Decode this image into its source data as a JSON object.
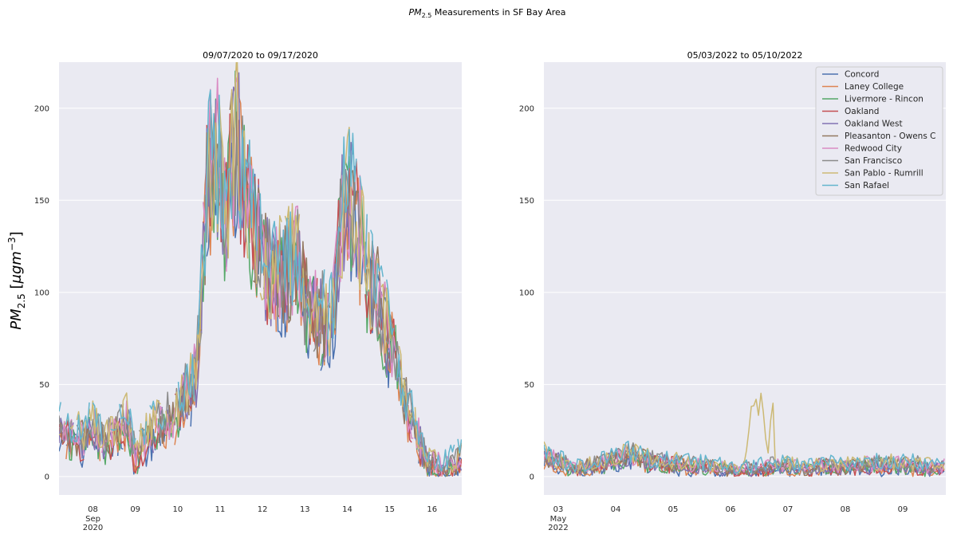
{
  "figure": {
    "suptitle_prefix": "PM",
    "suptitle_sub": "2.5",
    "suptitle_rest": " Measurements in SF Bay Area",
    "ylabel_main": "PM",
    "ylabel_sub": "2.5",
    "ylabel_unit_open": "  [",
    "ylabel_unit_mu": "μgm",
    "ylabel_unit_exp": "−3",
    "ylabel_unit_close": "]"
  },
  "colors": {
    "background": "#EAEAF2",
    "grid": "#FFFFFF",
    "series": [
      "#4C72B0",
      "#DD8452",
      "#55A868",
      "#C44E52",
      "#8172B3",
      "#937860",
      "#DA8BC3",
      "#8C8C8C",
      "#CCB974",
      "#64B5CD"
    ]
  },
  "chart_data": [
    {
      "type": "line",
      "title": "09/07/2020 to 09/17/2020",
      "xlabel": "",
      "ylabel": "PM2.5 [μgm−3]",
      "x_range": [
        7.2,
        16.7
      ],
      "ylim": [
        -10,
        225
      ],
      "yticks": [
        0,
        50,
        100,
        150,
        200
      ],
      "ytick_labels": [
        "0",
        "50",
        "100",
        "150",
        "200"
      ],
      "xticks": [
        8,
        9,
        10,
        11,
        12,
        13,
        14,
        15,
        16
      ],
      "xtick_labels": [
        "08",
        "09",
        "10",
        "11",
        "12",
        "13",
        "14",
        "15",
        "16"
      ],
      "xtick_sublabels": [
        "Sep",
        "2020"
      ],
      "grid": true,
      "legend": "none",
      "series_names": [
        "Concord",
        "Laney College",
        "Livermore - Rincon",
        "Oakland",
        "Oakland West",
        "Pleasanton - Owens C",
        "Redwood City",
        "San Francisco",
        "San Pablo - Rumrill",
        "San Rafael"
      ],
      "profile_x": [
        7.2,
        7.5,
        7.8,
        8.0,
        8.3,
        8.5,
        8.8,
        9.0,
        9.3,
        9.6,
        9.9,
        10.2,
        10.45,
        10.7,
        10.9,
        11.1,
        11.4,
        11.6,
        11.9,
        12.2,
        12.5,
        12.8,
        13.0,
        13.3,
        13.6,
        13.9,
        14.1,
        14.35,
        14.5,
        14.7,
        14.9,
        15.1,
        15.3,
        15.6,
        15.9,
        16.2,
        16.5,
        16.7
      ],
      "profile_y": [
        25,
        22,
        20,
        28,
        18,
        22,
        30,
        10,
        22,
        28,
        32,
        45,
        55,
        160,
        180,
        140,
        185,
        150,
        130,
        105,
        110,
        120,
        95,
        88,
        80,
        145,
        150,
        125,
        105,
        100,
        80,
        70,
        45,
        25,
        8,
        4,
        5,
        10
      ]
    },
    {
      "type": "line",
      "title": "05/03/2022 to 05/10/2022",
      "xlabel": "",
      "ylabel": "",
      "x_range": [
        2.75,
        9.75
      ],
      "ylim": [
        -10,
        225
      ],
      "yticks": [
        0,
        50,
        100,
        150,
        200
      ],
      "ytick_labels": [
        "0",
        "50",
        "100",
        "150",
        "200"
      ],
      "xticks": [
        3,
        4,
        5,
        6,
        7,
        8,
        9
      ],
      "xtick_labels": [
        "03",
        "04",
        "05",
        "06",
        "07",
        "08",
        "09"
      ],
      "xtick_sublabels": [
        "May",
        "2022"
      ],
      "grid": true,
      "legend": "upper right",
      "series_names": [
        "Concord",
        "Laney College",
        "Livermore - Rincon",
        "Oakland",
        "Oakland West",
        "Pleasanton - Owens C",
        "Redwood City",
        "San Francisco",
        "San Pablo - Rumrill",
        "San Rafael"
      ],
      "profile_x": [
        2.75,
        3.0,
        3.3,
        3.6,
        4.0,
        4.3,
        4.6,
        5.0,
        5.4,
        5.8,
        6.0,
        6.3,
        6.6,
        7.0,
        7.3,
        7.6,
        8.0,
        8.4,
        8.8,
        9.2,
        9.5,
        9.75
      ],
      "profile_y": [
        12,
        8,
        4,
        6,
        9,
        12,
        8,
        7,
        6,
        5,
        3,
        4,
        5,
        6,
        4,
        6,
        5,
        6,
        7,
        6,
        5,
        5
      ],
      "spike_series": "San Pablo - Rumrill",
      "spike_x": [
        6.25,
        6.35,
        6.42,
        6.55,
        6.65,
        6.72,
        6.78
      ],
      "spike_y": [
        5,
        33,
        37,
        40,
        10,
        43,
        42
      ]
    }
  ]
}
